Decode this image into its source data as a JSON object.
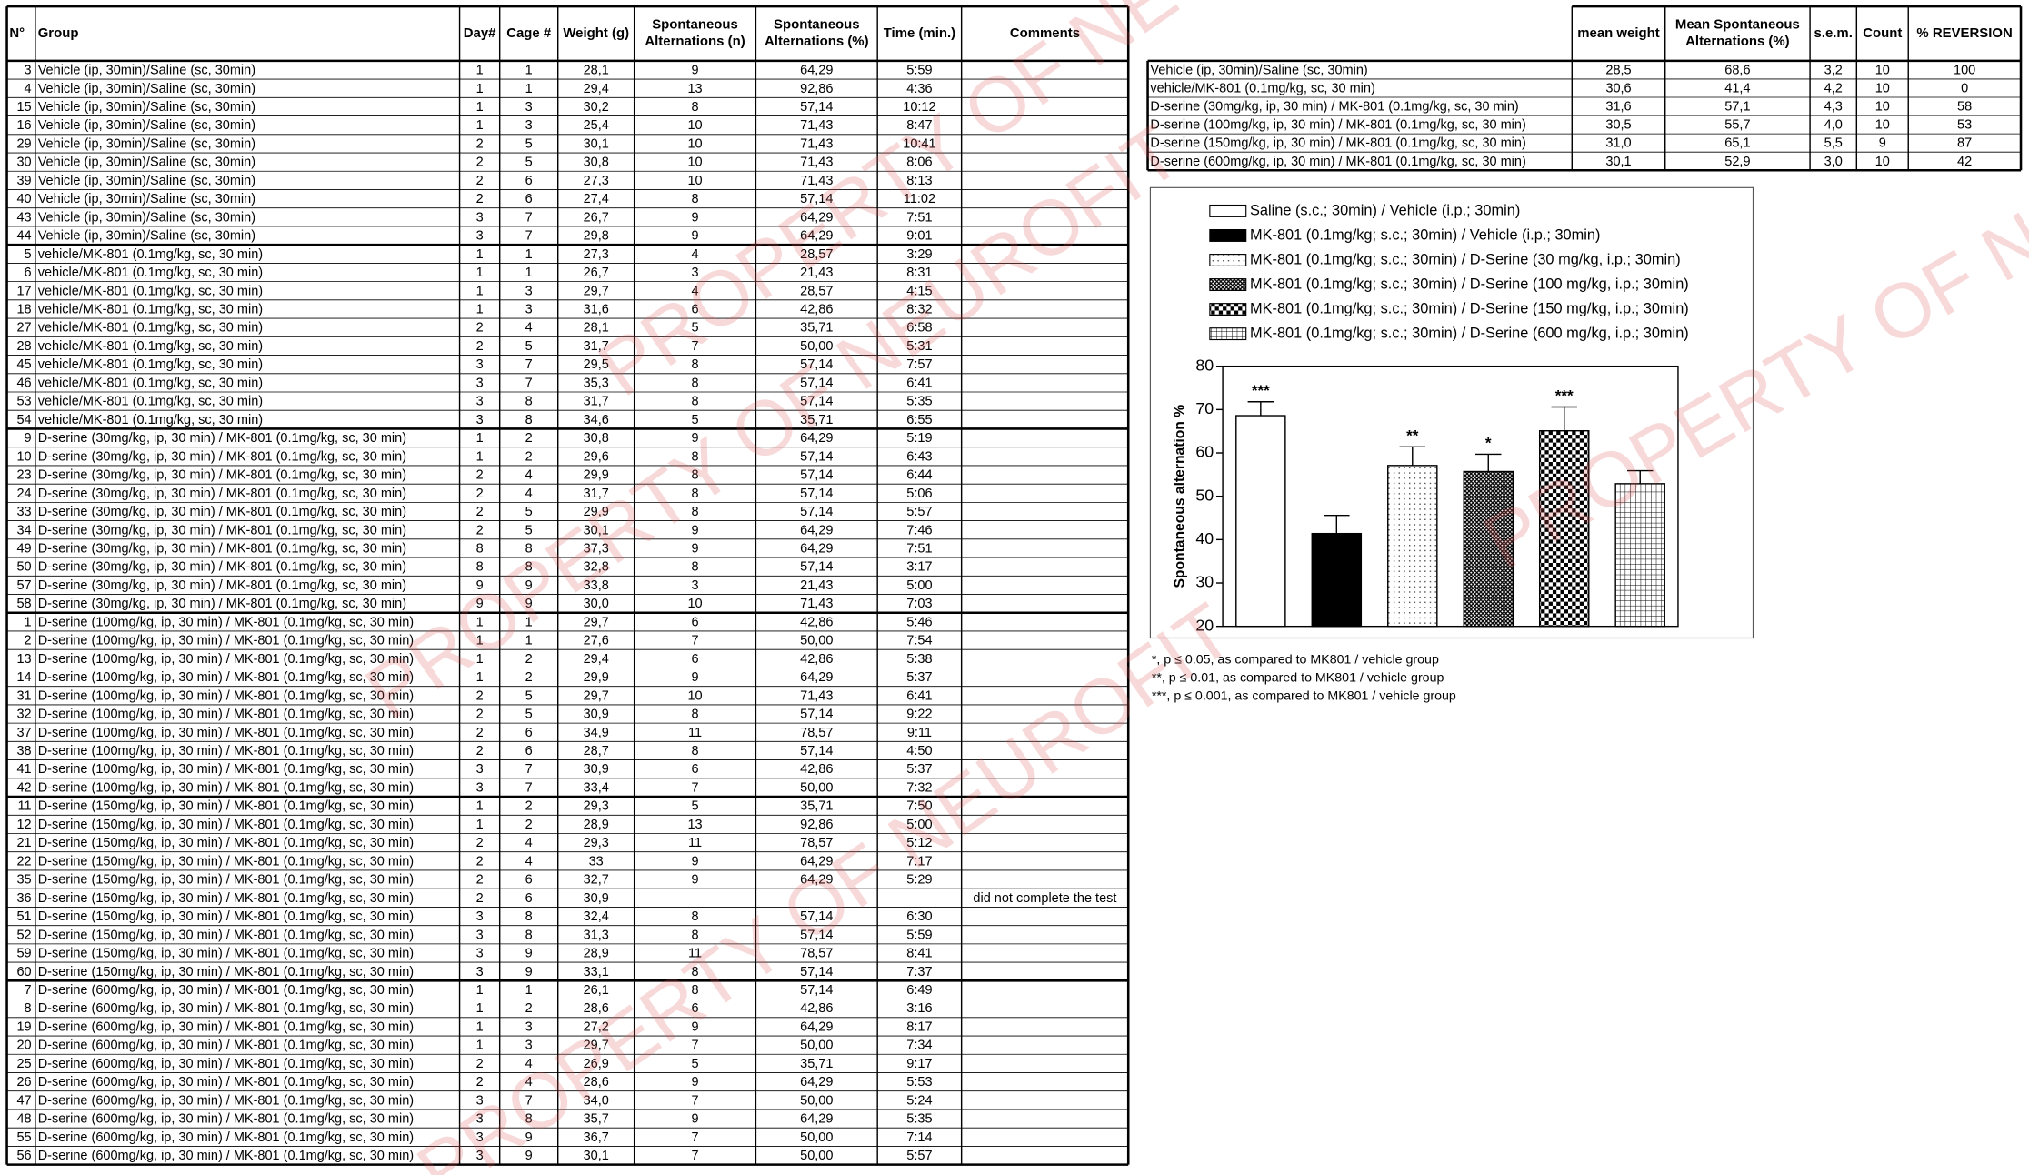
{
  "watermark": "PROPERTY OF NEUROFIT",
  "table": {
    "headers": [
      [
        "N°"
      ],
      [
        "Group"
      ],
      [
        "Day#"
      ],
      [
        "Cage #"
      ],
      [
        "Weight (g)"
      ],
      [
        "Spontaneous",
        "Alternations (n)"
      ],
      [
        "Spontaneous",
        "Alternations (%)"
      ],
      [
        "Time (min.)"
      ],
      [
        "Comments"
      ]
    ],
    "groups": [
      {
        "name": "Vehicle (ip, 30min)/Saline (sc, 30min)",
        "rows": [
          [
            "3",
            "1",
            "1",
            "28,1",
            "9",
            "64,29",
            "5:59"
          ],
          [
            "4",
            "1",
            "1",
            "29,4",
            "13",
            "92,86",
            "4:36"
          ],
          [
            "15",
            "1",
            "3",
            "30,2",
            "8",
            "57,14",
            "10:12"
          ],
          [
            "16",
            "1",
            "3",
            "25,4",
            "10",
            "71,43",
            "8:47"
          ],
          [
            "29",
            "2",
            "5",
            "30,1",
            "10",
            "71,43",
            "10:41"
          ],
          [
            "30",
            "2",
            "5",
            "30,8",
            "10",
            "71,43",
            "8:06"
          ],
          [
            "39",
            "2",
            "6",
            "27,3",
            "10",
            "71,43",
            "8:13"
          ],
          [
            "40",
            "2",
            "6",
            "27,4",
            "8",
            "57,14",
            "11:02"
          ],
          [
            "43",
            "3",
            "7",
            "26,7",
            "9",
            "64,29",
            "7:51"
          ],
          [
            "44",
            "3",
            "7",
            "29,8",
            "9",
            "64,29",
            "9:01"
          ]
        ]
      },
      {
        "name": "vehicle/MK-801 (0.1mg/kg, sc, 30 min)",
        "rows": [
          [
            "5",
            "1",
            "1",
            "27,3",
            "4",
            "28,57",
            "3:29"
          ],
          [
            "6",
            "1",
            "1",
            "26,7",
            "3",
            "21,43",
            "8:31"
          ],
          [
            "17",
            "1",
            "3",
            "29,7",
            "4",
            "28,57",
            "4:15"
          ],
          [
            "18",
            "1",
            "3",
            "31,6",
            "6",
            "42,86",
            "8:32"
          ],
          [
            "27",
            "2",
            "4",
            "28,1",
            "5",
            "35,71",
            "6:58"
          ],
          [
            "28",
            "2",
            "5",
            "31,7",
            "7",
            "50,00",
            "5:31"
          ],
          [
            "45",
            "3",
            "7",
            "29,5",
            "8",
            "57,14",
            "7:57"
          ],
          [
            "46",
            "3",
            "7",
            "35,3",
            "8",
            "57,14",
            "6:41"
          ],
          [
            "53",
            "3",
            "8",
            "31,7",
            "8",
            "57,14",
            "5:35"
          ],
          [
            "54",
            "3",
            "8",
            "34,6",
            "5",
            "35,71",
            "6:55"
          ]
        ]
      },
      {
        "name": "D-serine (30mg/kg, ip, 30 min) / MK-801 (0.1mg/kg, sc, 30 min)",
        "rows": [
          [
            "9",
            "1",
            "2",
            "30,8",
            "9",
            "64,29",
            "5:19"
          ],
          [
            "10",
            "1",
            "2",
            "29,6",
            "8",
            "57,14",
            "6:43"
          ],
          [
            "23",
            "2",
            "4",
            "29,9",
            "8",
            "57,14",
            "6:44"
          ],
          [
            "24",
            "2",
            "4",
            "31,7",
            "8",
            "57,14",
            "5:06"
          ],
          [
            "33",
            "2",
            "5",
            "29,9",
            "8",
            "57,14",
            "5:57"
          ],
          [
            "34",
            "2",
            "5",
            "30,1",
            "9",
            "64,29",
            "7:46"
          ],
          [
            "49",
            "8",
            "8",
            "37,3",
            "9",
            "64,29",
            "7:51"
          ],
          [
            "50",
            "8",
            "8",
            "32,8",
            "8",
            "57,14",
            "3:17"
          ],
          [
            "57",
            "9",
            "9",
            "33,8",
            "3",
            "21,43",
            "5:00"
          ],
          [
            "58",
            "9",
            "9",
            "30,0",
            "10",
            "71,43",
            "7:03"
          ]
        ]
      },
      {
        "name": "D-serine (100mg/kg, ip, 30 min) / MK-801 (0.1mg/kg, sc, 30 min)",
        "rows": [
          [
            "1",
            "1",
            "1",
            "29,7",
            "6",
            "42,86",
            "5:46"
          ],
          [
            "2",
            "1",
            "1",
            "27,6",
            "7",
            "50,00",
            "7:54"
          ],
          [
            "13",
            "1",
            "2",
            "29,4",
            "6",
            "42,86",
            "5:38"
          ],
          [
            "14",
            "1",
            "2",
            "29,9",
            "9",
            "64,29",
            "5:37"
          ],
          [
            "31",
            "2",
            "5",
            "29,7",
            "10",
            "71,43",
            "6:41"
          ],
          [
            "32",
            "2",
            "5",
            "30,9",
            "8",
            "57,14",
            "9:22"
          ],
          [
            "37",
            "2",
            "6",
            "34,9",
            "11",
            "78,57",
            "9:11"
          ],
          [
            "38",
            "2",
            "6",
            "28,7",
            "8",
            "57,14",
            "4:50"
          ],
          [
            "41",
            "3",
            "7",
            "30,9",
            "6",
            "42,86",
            "5:37"
          ],
          [
            "42",
            "3",
            "7",
            "33,4",
            "7",
            "50,00",
            "7:32"
          ]
        ]
      },
      {
        "name": "D-serine (150mg/kg, ip, 30 min) / MK-801 (0.1mg/kg, sc, 30 min)",
        "rows": [
          [
            "11",
            "1",
            "2",
            "29,3",
            "5",
            "35,71",
            "7:50"
          ],
          [
            "12",
            "1",
            "2",
            "28,9",
            "13",
            "92,86",
            "5:00"
          ],
          [
            "21",
            "2",
            "4",
            "29,3",
            "11",
            "78,57",
            "5:12"
          ],
          [
            "22",
            "2",
            "4",
            "33",
            "9",
            "64,29",
            "7:17"
          ],
          [
            "35",
            "2",
            "6",
            "32,7",
            "9",
            "64,29",
            "5:29"
          ],
          [
            "36",
            "2",
            "6",
            "30,9",
            null,
            null,
            null,
            "did not complete the test"
          ],
          [
            "51",
            "3",
            "8",
            "32,4",
            "8",
            "57,14",
            "6:30"
          ],
          [
            "52",
            "3",
            "8",
            "31,3",
            "8",
            "57,14",
            "5:59"
          ],
          [
            "59",
            "3",
            "9",
            "28,9",
            "11",
            "78,57",
            "8:41"
          ],
          [
            "60",
            "3",
            "9",
            "33,1",
            "8",
            "57,14",
            "7:37"
          ]
        ]
      },
      {
        "name": "D-serine (600mg/kg, ip, 30 min) / MK-801 (0.1mg/kg, sc, 30 min)",
        "rows": [
          [
            "7",
            "1",
            "1",
            "26,1",
            "8",
            "57,14",
            "6:49"
          ],
          [
            "8",
            "1",
            "2",
            "28,6",
            "6",
            "42,86",
            "3:16"
          ],
          [
            "19",
            "1",
            "3",
            "27,2",
            "9",
            "64,29",
            "8:17"
          ],
          [
            "20",
            "1",
            "3",
            "29,7",
            "7",
            "50,00",
            "7:34"
          ],
          [
            "25",
            "2",
            "4",
            "26,9",
            "5",
            "35,71",
            "9:17"
          ],
          [
            "26",
            "2",
            "4",
            "28,6",
            "9",
            "64,29",
            "5:53"
          ],
          [
            "47",
            "3",
            "7",
            "34,0",
            "7",
            "50,00",
            "5:24"
          ],
          [
            "48",
            "3",
            "8",
            "35,7",
            "9",
            "64,29",
            "5:35"
          ],
          [
            "55",
            "3",
            "9",
            "36,7",
            "7",
            "50,00",
            "7:14"
          ],
          [
            "56",
            "3",
            "9",
            "30,1",
            "7",
            "50,00",
            "5:57"
          ]
        ]
      }
    ]
  },
  "summary": {
    "headers": [
      [
        "mean weight"
      ],
      [
        "Mean Spontaneous",
        "Alternations (%)"
      ],
      [
        "s.e.m."
      ],
      [
        "Count"
      ],
      [
        "% REVERSION"
      ]
    ],
    "rows": [
      [
        "Vehicle (ip, 30min)/Saline (sc, 30min)",
        "28,5",
        "68,6",
        "3,2",
        "10",
        "100"
      ],
      [
        "vehicle/MK-801 (0.1mg/kg, sc, 30 min)",
        "30,6",
        "41,4",
        "4,2",
        "10",
        "0"
      ],
      [
        "D-serine (30mg/kg, ip, 30 min) / MK-801 (0.1mg/kg, sc, 30 min)",
        "31,6",
        "57,1",
        "4,3",
        "10",
        "58"
      ],
      [
        "D-serine (100mg/kg, ip, 30 min) / MK-801 (0.1mg/kg, sc, 30 min)",
        "30,5",
        "55,7",
        "4,0",
        "10",
        "53"
      ],
      [
        "D-serine (150mg/kg, ip, 30 min) / MK-801 (0.1mg/kg, sc, 30 min)",
        "31,0",
        "65,1",
        "5,5",
        "9",
        "87"
      ],
      [
        "D-serine (600mg/kg, ip, 30 min) / MK-801 (0.1mg/kg, sc, 30 min)",
        "30,1",
        "52,9",
        "3,0",
        "10",
        "42"
      ]
    ]
  },
  "chart_data": {
    "type": "bar",
    "ylabel": "Spontaneous alternation %",
    "categories": [
      "Saline (s.c.; 30min) / Vehicle (i.p.; 30min)",
      "MK-801 (0.1mg/kg; s.c.; 30min) / Vehicle (i.p.; 30min)",
      "MK-801 (0.1mg/kg; s.c.; 30min) / D-Serine (30 mg/kg, i.p.; 30min)",
      "MK-801 (0.1mg/kg; s.c.; 30min) / D-Serine (100 mg/kg, i.p.; 30min)",
      "MK-801 (0.1mg/kg; s.c.; 30min) / D-Serine (150 mg/kg, i.p.; 30min)",
      "MK-801 (0.1mg/kg; s.c.; 30min) / D-Serine (600 mg/kg, i.p.; 30min)"
    ],
    "values": [
      68.6,
      41.4,
      57.1,
      55.7,
      65.1,
      52.9
    ],
    "errors": [
      3.2,
      4.2,
      4.3,
      4.0,
      5.5,
      3.0
    ],
    "annotations": [
      "***",
      null,
      "**",
      "*",
      "***",
      null
    ],
    "fills": [
      "white",
      "black",
      "dots",
      "hatch",
      "checker",
      "grid"
    ],
    "ylim": [
      20,
      80
    ],
    "yticks": [
      20,
      30,
      40,
      50,
      60,
      70,
      80
    ],
    "notes": [
      "*, p ≤ 0.05, as compared to MK801 / vehicle group",
      "**, p ≤ 0.01, as compared to MK801 / vehicle group",
      "***, p ≤ 0.001, as compared to MK801 / vehicle group"
    ]
  }
}
